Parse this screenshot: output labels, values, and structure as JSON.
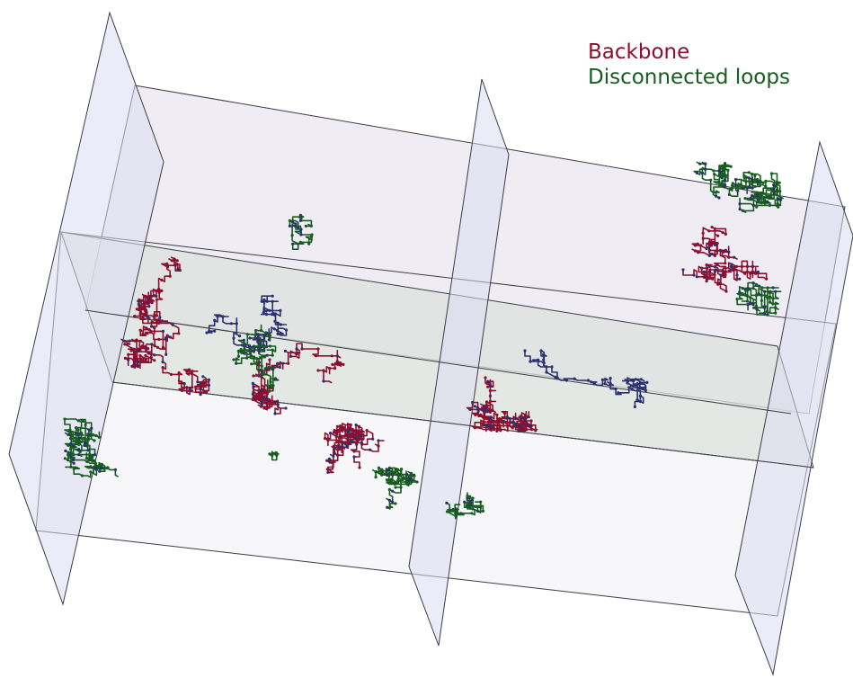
{
  "legend": {
    "backbone_label": "Backbone",
    "loops_label": "Disconnected loops"
  },
  "colors": {
    "backbone": "#8b0f2f",
    "loops": "#165c1e",
    "links": "#2b3070",
    "plane_fill": "#dcdcf2",
    "slab_fill": "#d6dcd6",
    "plane_edge": "#3c3c46"
  }
}
